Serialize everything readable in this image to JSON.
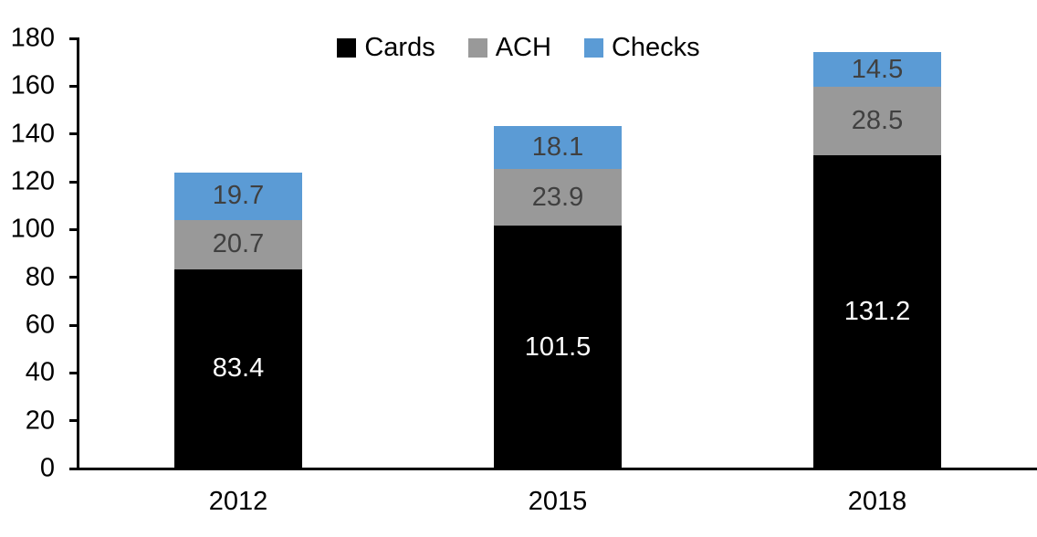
{
  "chart_data": {
    "type": "bar",
    "stacked": true,
    "title": "",
    "xlabel": "",
    "ylabel": "",
    "categories": [
      "2012",
      "2015",
      "2018"
    ],
    "series": [
      {
        "name": "Cards",
        "color": "#000000",
        "label_color": "#FFFFFF",
        "values": [
          83.4,
          101.5,
          131.2
        ]
      },
      {
        "name": "ACH",
        "color": "#999999",
        "label_color": "#404040",
        "values": [
          20.7,
          23.9,
          28.5
        ]
      },
      {
        "name": "Checks",
        "color": "#5B9BD5",
        "label_color": "#404040",
        "values": [
          19.7,
          18.1,
          14.5
        ]
      }
    ],
    "totals": [
      123.8,
      143.5,
      174.2
    ],
    "ylim": [
      0,
      180
    ],
    "yticks": [
      0,
      20,
      40,
      60,
      80,
      100,
      120,
      140,
      160,
      180
    ],
    "legend_position": "top-center",
    "grid": false,
    "axis_color": "#000000",
    "text_color": "#000000",
    "background_color": "#FFFFFF"
  }
}
